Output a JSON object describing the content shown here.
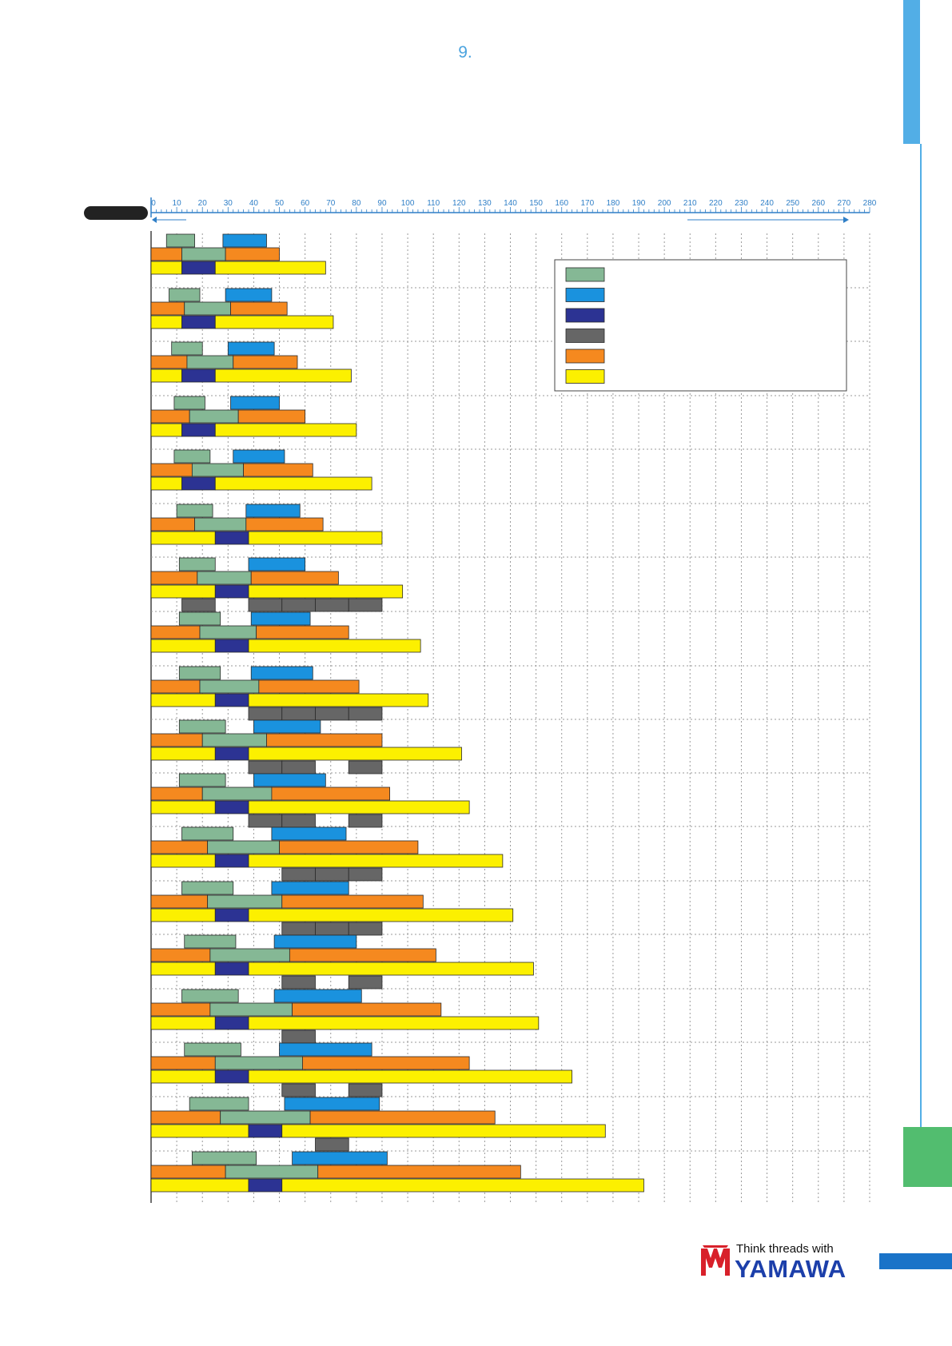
{
  "page": {
    "number": "9."
  },
  "brand": {
    "tagline": "Think threads with",
    "name": "YAMAWA"
  },
  "colors": {
    "tab_blue": "#52aee6",
    "tab_green": "#52bd6f",
    "footer_blue": "#1a73c8",
    "axis_blue": "#2f7fc7"
  },
  "chart_data": {
    "type": "bar",
    "orientation": "horizontal-segments",
    "xlim": [
      0,
      280
    ],
    "ticks": [
      0,
      10,
      20,
      30,
      40,
      50,
      60,
      70,
      80,
      90,
      100,
      110,
      120,
      130,
      140,
      150,
      160,
      170,
      180,
      190,
      200,
      210,
      220,
      230,
      240,
      250,
      260,
      270,
      280
    ],
    "grid": true,
    "legend": {
      "placement": "top-right",
      "colors": [
        "#85b895",
        "#1a92de",
        "#2c3393",
        "#666666",
        "#f5891f",
        "#fcf000"
      ]
    },
    "series_colors": {
      "green": "#85b895",
      "blue": "#1a92de",
      "navy": "#2c3393",
      "gray": "#666666",
      "orange": "#f5891f",
      "yellow": "#fcf000"
    },
    "groups": [
      {
        "rows": [
          [
            [
              "green",
              6,
              17
            ],
            [
              "blue",
              28,
              45
            ]
          ],
          [
            [
              "orange",
              0,
              12
            ],
            [
              "green",
              12,
              29
            ],
            [
              "orange",
              29,
              50
            ]
          ],
          [
            [
              "yellow",
              0,
              12
            ],
            [
              "navy",
              12,
              25
            ],
            [
              "yellow",
              25,
              68
            ]
          ]
        ]
      },
      {
        "rows": [
          [
            [
              "green",
              7,
              19
            ],
            [
              "blue",
              29,
              47
            ]
          ],
          [
            [
              "orange",
              0,
              13
            ],
            [
              "green",
              13,
              31
            ],
            [
              "orange",
              31,
              53
            ]
          ],
          [
            [
              "yellow",
              0,
              12
            ],
            [
              "navy",
              12,
              25
            ],
            [
              "yellow",
              25,
              71
            ]
          ]
        ]
      },
      {
        "rows": [
          [
            [
              "green",
              8,
              20
            ],
            [
              "blue",
              30,
              48
            ]
          ],
          [
            [
              "orange",
              0,
              14
            ],
            [
              "green",
              14,
              32
            ],
            [
              "orange",
              32,
              57
            ]
          ],
          [
            [
              "yellow",
              0,
              12
            ],
            [
              "navy",
              12,
              25
            ],
            [
              "yellow",
              25,
              78
            ]
          ]
        ]
      },
      {
        "rows": [
          [
            [
              "green",
              9,
              21
            ],
            [
              "blue",
              31,
              50
            ]
          ],
          [
            [
              "orange",
              0,
              15
            ],
            [
              "green",
              15,
              34
            ],
            [
              "orange",
              34,
              60
            ]
          ],
          [
            [
              "yellow",
              0,
              12
            ],
            [
              "navy",
              12,
              25
            ],
            [
              "yellow",
              25,
              80
            ]
          ]
        ]
      },
      {
        "rows": [
          [
            [
              "green",
              9,
              23
            ],
            [
              "blue",
              32,
              52
            ]
          ],
          [
            [
              "orange",
              0,
              16
            ],
            [
              "green",
              16,
              36
            ],
            [
              "orange",
              36,
              63
            ]
          ],
          [
            [
              "yellow",
              0,
              12
            ],
            [
              "navy",
              12,
              25
            ],
            [
              "yellow",
              25,
              86
            ]
          ]
        ]
      },
      {
        "rows": [
          [
            [
              "green",
              10,
              24
            ],
            [
              "blue",
              37,
              58
            ]
          ],
          [
            [
              "orange",
              0,
              17
            ],
            [
              "green",
              17,
              37
            ],
            [
              "orange",
              37,
              67
            ]
          ],
          [
            [
              "yellow",
              0,
              25
            ],
            [
              "navy",
              25,
              38
            ],
            [
              "yellow",
              38,
              90
            ]
          ]
        ]
      },
      {
        "rows": [
          [
            [
              "green",
              11,
              25
            ],
            [
              "blue",
              38,
              60
            ]
          ],
          [
            [
              "orange",
              0,
              18
            ],
            [
              "green",
              18,
              39
            ],
            [
              "orange",
              39,
              73
            ]
          ],
          [
            [
              "yellow",
              0,
              25
            ],
            [
              "navy",
              25,
              38
            ],
            [
              "yellow",
              38,
              98
            ]
          ],
          [
            [
              "gray",
              12,
              25
            ],
            [
              "gray",
              38,
              51
            ],
            [
              "gray",
              51,
              64
            ],
            [
              "gray",
              64,
              77
            ],
            [
              "gray",
              77,
              90
            ]
          ]
        ]
      },
      {
        "rows": [
          [
            [
              "green",
              11,
              27
            ],
            [
              "blue",
              39,
              62
            ]
          ],
          [
            [
              "orange",
              0,
              19
            ],
            [
              "green",
              19,
              41
            ],
            [
              "orange",
              41,
              77
            ]
          ],
          [
            [
              "yellow",
              0,
              25
            ],
            [
              "navy",
              25,
              38
            ],
            [
              "yellow",
              38,
              105
            ]
          ]
        ]
      },
      {
        "rows": [
          [
            [
              "green",
              11,
              27
            ],
            [
              "blue",
              39,
              63
            ]
          ],
          [
            [
              "orange",
              0,
              19
            ],
            [
              "green",
              19,
              42
            ],
            [
              "orange",
              42,
              81
            ]
          ],
          [
            [
              "yellow",
              0,
              25
            ],
            [
              "navy",
              25,
              38
            ],
            [
              "yellow",
              38,
              108
            ]
          ],
          [
            [
              "gray",
              38,
              51
            ],
            [
              "gray",
              51,
              64
            ],
            [
              "gray",
              64,
              77
            ],
            [
              "gray",
              77,
              90
            ]
          ]
        ]
      },
      {
        "rows": [
          [
            [
              "green",
              11,
              29
            ],
            [
              "blue",
              40,
              66
            ]
          ],
          [
            [
              "orange",
              0,
              20
            ],
            [
              "green",
              20,
              45
            ],
            [
              "orange",
              45,
              90
            ]
          ],
          [
            [
              "yellow",
              0,
              25
            ],
            [
              "navy",
              25,
              38
            ],
            [
              "yellow",
              38,
              121
            ]
          ],
          [
            [
              "gray",
              38,
              51
            ],
            [
              "gray",
              51,
              64
            ],
            [
              "gray",
              77,
              90
            ]
          ]
        ]
      },
      {
        "rows": [
          [
            [
              "green",
              11,
              29
            ],
            [
              "blue",
              40,
              68
            ]
          ],
          [
            [
              "orange",
              0,
              20
            ],
            [
              "green",
              20,
              47
            ],
            [
              "orange",
              47,
              93
            ]
          ],
          [
            [
              "yellow",
              0,
              25
            ],
            [
              "navy",
              25,
              38
            ],
            [
              "yellow",
              38,
              124
            ]
          ],
          [
            [
              "gray",
              38,
              51
            ],
            [
              "gray",
              51,
              64
            ],
            [
              "gray",
              77,
              90
            ]
          ]
        ]
      },
      {
        "rows": [
          [
            [
              "green",
              12,
              32
            ],
            [
              "blue",
              47,
              76
            ]
          ],
          [
            [
              "orange",
              0,
              22
            ],
            [
              "green",
              22,
              50
            ],
            [
              "orange",
              50,
              104
            ]
          ],
          [
            [
              "yellow",
              0,
              25
            ],
            [
              "navy",
              25,
              38
            ],
            [
              "yellow",
              38,
              137
            ]
          ],
          [
            [
              "gray",
              51,
              64
            ],
            [
              "gray",
              64,
              77
            ],
            [
              "gray",
              77,
              90
            ]
          ]
        ]
      },
      {
        "rows": [
          [
            [
              "green",
              12,
              32
            ],
            [
              "blue",
              47,
              77
            ]
          ],
          [
            [
              "orange",
              0,
              22
            ],
            [
              "green",
              22,
              51
            ],
            [
              "orange",
              51,
              106
            ]
          ],
          [
            [
              "yellow",
              0,
              25
            ],
            [
              "navy",
              25,
              38
            ],
            [
              "yellow",
              38,
              141
            ]
          ],
          [
            [
              "gray",
              51,
              64
            ],
            [
              "gray",
              64,
              77
            ],
            [
              "gray",
              77,
              90
            ]
          ]
        ]
      },
      {
        "rows": [
          [
            [
              "green",
              13,
              33
            ],
            [
              "blue",
              48,
              80
            ]
          ],
          [
            [
              "orange",
              0,
              23
            ],
            [
              "green",
              23,
              54
            ],
            [
              "orange",
              54,
              111
            ]
          ],
          [
            [
              "yellow",
              0,
              25
            ],
            [
              "navy",
              25,
              38
            ],
            [
              "yellow",
              38,
              149
            ]
          ],
          [
            [
              "gray",
              51,
              64
            ],
            [
              "gray",
              77,
              90
            ]
          ]
        ]
      },
      {
        "rows": [
          [
            [
              "green",
              12,
              34
            ],
            [
              "blue",
              48,
              82
            ]
          ],
          [
            [
              "orange",
              0,
              23
            ],
            [
              "green",
              23,
              55
            ],
            [
              "orange",
              55,
              113
            ]
          ],
          [
            [
              "yellow",
              0,
              25
            ],
            [
              "navy",
              25,
              38
            ],
            [
              "yellow",
              38,
              151
            ]
          ],
          [
            [
              "gray",
              51,
              64
            ]
          ]
        ]
      },
      {
        "rows": [
          [
            [
              "green",
              13,
              35
            ],
            [
              "blue",
              50,
              86
            ]
          ],
          [
            [
              "orange",
              0,
              25
            ],
            [
              "green",
              25,
              59
            ],
            [
              "orange",
              59,
              124
            ]
          ],
          [
            [
              "yellow",
              0,
              25
            ],
            [
              "navy",
              25,
              38
            ],
            [
              "yellow",
              38,
              164
            ]
          ],
          [
            [
              "gray",
              51,
              64
            ],
            [
              "gray",
              77,
              90
            ]
          ]
        ]
      },
      {
        "rows": [
          [
            [
              "green",
              15,
              38
            ],
            [
              "blue",
              52,
              89
            ]
          ],
          [
            [
              "orange",
              0,
              27
            ],
            [
              "green",
              27,
              62
            ],
            [
              "orange",
              62,
              134
            ]
          ],
          [
            [
              "yellow",
              0,
              38
            ],
            [
              "navy",
              38,
              51
            ],
            [
              "yellow",
              51,
              177
            ]
          ],
          [
            [
              "gray",
              64,
              77
            ]
          ]
        ]
      },
      {
        "rows": [
          [
            [
              "green",
              16,
              41
            ],
            [
              "blue",
              55,
              92
            ]
          ],
          [
            [
              "orange",
              0,
              29
            ],
            [
              "green",
              29,
              65
            ],
            [
              "orange",
              65,
              144
            ]
          ],
          [
            [
              "yellow",
              0,
              38
            ],
            [
              "navy",
              38,
              51
            ],
            [
              "yellow",
              51,
              192
            ]
          ]
        ]
      }
    ]
  }
}
